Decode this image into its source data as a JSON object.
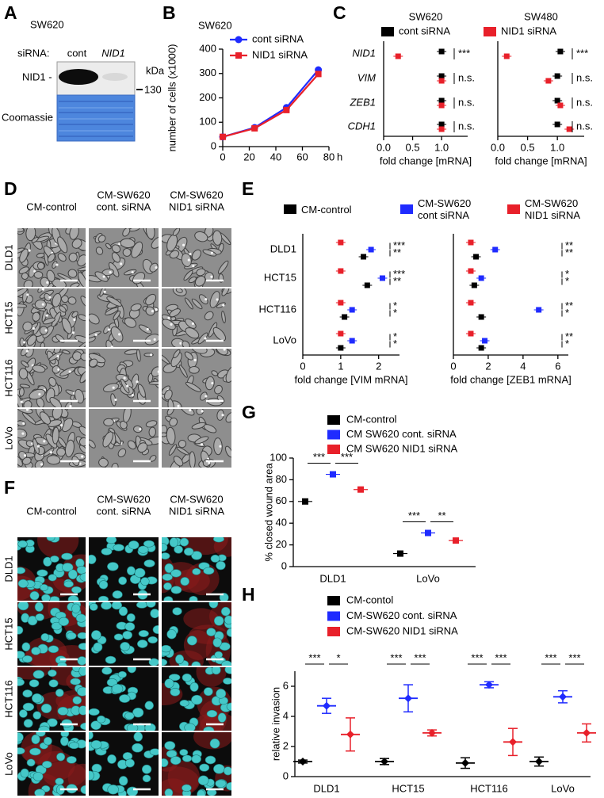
{
  "figure": {
    "blot": {
      "label": "A",
      "title": "SW620",
      "row_label": "siRNA:",
      "lanes": [
        "cont",
        "NID1"
      ],
      "unit": "kDa",
      "band_label": "NID1 -",
      "marker": "130",
      "stain": "Coomassie"
    },
    "phase_contrast": {
      "label": "D",
      "columns": [
        [
          "CM-control"
        ],
        [
          "CM-SW620",
          "cont. siRNA"
        ],
        [
          "CM-SW620",
          "NID1 siRNA"
        ]
      ],
      "rows": [
        "DLD1",
        "HCT15",
        "HCT116",
        "LoVo"
      ]
    },
    "fluorescence": {
      "label": "F",
      "columns": [
        [
          "CM-control"
        ],
        [
          "CM-SW620",
          "cont. siRNA"
        ],
        [
          "CM-SW620",
          "NID1 siRNA"
        ]
      ],
      "rows": [
        "DLD1",
        "HCT15",
        "HCT116",
        "LoVo"
      ]
    }
  },
  "chart_data": [
    {
      "type": "line",
      "label": "B",
      "title": "SW620",
      "x": [
        0,
        24,
        48,
        72
      ],
      "series": [
        {
          "name": "cont siRNA",
          "color": "#1f2bff",
          "values": [
            40,
            78,
            160,
            315
          ]
        },
        {
          "name": "NID1 siRNA",
          "color": "#e8202a",
          "values": [
            40,
            75,
            150,
            298
          ]
        }
      ],
      "xlim": [
        0,
        80
      ],
      "xticks": [
        0,
        20,
        40,
        60,
        80
      ],
      "x_unit": "h",
      "ylim": [
        0,
        400
      ],
      "yticks": [
        0,
        100,
        200,
        300,
        400
      ],
      "ylabel": "number of cells  (x1000)"
    },
    {
      "type": "dot",
      "label": "C",
      "categories": [
        "NID1",
        "VIM",
        "ZEB1",
        "CDH1"
      ],
      "series": [
        {
          "name": "cont siRNA",
          "color": "#000000"
        },
        {
          "name": "NID1 siRNA",
          "color": "#e8202a"
        }
      ],
      "facets": [
        {
          "title": "SW620",
          "values": [
            [
              1,
              1,
              1,
              1
            ],
            [
              0.25,
              1,
              1,
              1
            ]
          ],
          "significance": [
            "***",
            "n.s.",
            "n.s.",
            "n.s."
          ],
          "xlim": [
            0,
            1.45
          ],
          "xticks": [
            {
              "value": 0,
              "label": "0.0"
            },
            {
              "value": 0.5,
              "label": "0.5"
            },
            {
              "value": 1,
              "label": "1.0"
            }
          ],
          "xlabel": "fold change [mRNA]"
        },
        {
          "title": "SW480",
          "values": [
            [
              1.05,
              1,
              1,
              1
            ],
            [
              0.15,
              0.85,
              1.05,
              1.2
            ]
          ],
          "significance": [
            "***",
            "n.s.",
            "n.s.",
            "n.s."
          ],
          "xlim": [
            0,
            1.45
          ],
          "xticks": [
            {
              "value": 0,
              "label": "0.0"
            },
            {
              "value": 0.5,
              "label": "0.5"
            },
            {
              "value": 1,
              "label": "1.0"
            }
          ],
          "xlabel": "fold change [mRNA]"
        }
      ]
    },
    {
      "type": "dot",
      "label": "E",
      "categories": [
        "DLD1",
        "HCT15",
        "HCT116",
        "LoVo"
      ],
      "series": [
        {
          "name": "CM-control",
          "color": "#000000"
        },
        {
          "name": "CM-SW620 cont siRNA",
          "color": "#1f2bff"
        },
        {
          "name": "CM-SW620 NID1 siRNA",
          "color": "#e8202a"
        }
      ],
      "facets": [
        {
          "values": [
            [
              1.6,
              1.7,
              1.1,
              1.0
            ],
            [
              1.8,
              2.1,
              1.3,
              1.3
            ],
            [
              1,
              1,
              1,
              1
            ]
          ],
          "significance": [
            [
              "***",
              "**"
            ],
            [
              "***",
              "**"
            ],
            [
              "*",
              "*"
            ],
            [
              "*",
              "*"
            ]
          ],
          "xlim": [
            0,
            2.55
          ],
          "xticks": [
            0,
            1,
            2
          ],
          "xlabel": "fold change [VIM mRNA]"
        },
        {
          "values": [
            [
              1.3,
              1.2,
              1.6,
              1.6
            ],
            [
              2.4,
              1.6,
              4.9,
              1.8
            ],
            [
              1,
              1,
              1,
              1
            ]
          ],
          "significance": [
            [
              "**",
              "**"
            ],
            [
              "*",
              "*"
            ],
            [
              "**",
              "*"
            ],
            [
              "**",
              "*"
            ]
          ],
          "xlim": [
            0,
            6.6
          ],
          "xticks": [
            0,
            2,
            4,
            6
          ],
          "xlabel": "fold change [ZEB1 mRNA]"
        }
      ]
    },
    {
      "type": "strip",
      "label": "G",
      "categories": [
        "DLD1",
        "LoVo"
      ],
      "series": [
        {
          "name": "CM-control",
          "color": "#000000",
          "values": [
            60,
            12
          ]
        },
        {
          "name": "CM SW620 cont. siRNA",
          "color": "#1f2bff",
          "values": [
            85,
            31
          ]
        },
        {
          "name": "CM SW620 NID1 siRNA",
          "color": "#e8202a",
          "values": [
            71,
            24
          ]
        }
      ],
      "ylim": [
        0,
        100
      ],
      "yticks": [
        0,
        20,
        40,
        60,
        80,
        100
      ],
      "ylabel": "% closed wound area",
      "significance": [
        [
          "***",
          "***"
        ],
        [
          "***",
          "**"
        ]
      ]
    },
    {
      "type": "strip",
      "label": "H",
      "categories": [
        "DLD1",
        "HCT15",
        "HCT116",
        "LoVo"
      ],
      "series": [
        {
          "name": "CM-contol",
          "color": "#000000",
          "values": [
            1.0,
            1.0,
            0.9,
            1.0
          ],
          "errors": [
            0.1,
            0.2,
            0.35,
            0.3
          ]
        },
        {
          "name": "CM-SW620 cont. siRNA",
          "color": "#1f2bff",
          "values": [
            4.7,
            5.2,
            6.1,
            5.3
          ],
          "errors": [
            0.5,
            0.9,
            0.2,
            0.4
          ]
        },
        {
          "name": "CM-SW620 NID1 siRNA",
          "color": "#e8202a",
          "values": [
            2.8,
            2.9,
            2.3,
            2.9
          ],
          "errors": [
            1.1,
            0.2,
            0.9,
            0.6
          ]
        }
      ],
      "ylim": [
        0,
        7
      ],
      "yticks": [
        0,
        2,
        4,
        6
      ],
      "ylabel": "relative invasion",
      "significance": [
        [
          "***",
          "*"
        ],
        [
          "***",
          "***"
        ],
        [
          "***",
          "***"
        ],
        [
          "***",
          "***"
        ]
      ]
    }
  ]
}
